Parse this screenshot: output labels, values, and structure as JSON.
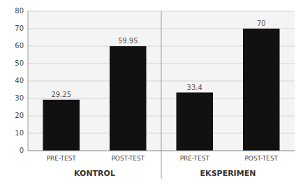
{
  "chart_data": {
    "type": "bar",
    "categories": [
      "PRE-TEST",
      "POST-TEST",
      "PRE-TEST",
      "POST-TEST"
    ],
    "values": [
      29.25,
      59.95,
      33.4,
      70
    ],
    "groups": [
      "KONTROL",
      "EKSPERIMEN"
    ],
    "color": "#111111",
    "ylim": [
      0,
      80
    ],
    "yticks": [
      0,
      10,
      20,
      30,
      40,
      50,
      60,
      70,
      80
    ],
    "grid": true,
    "data_labels": true
  }
}
